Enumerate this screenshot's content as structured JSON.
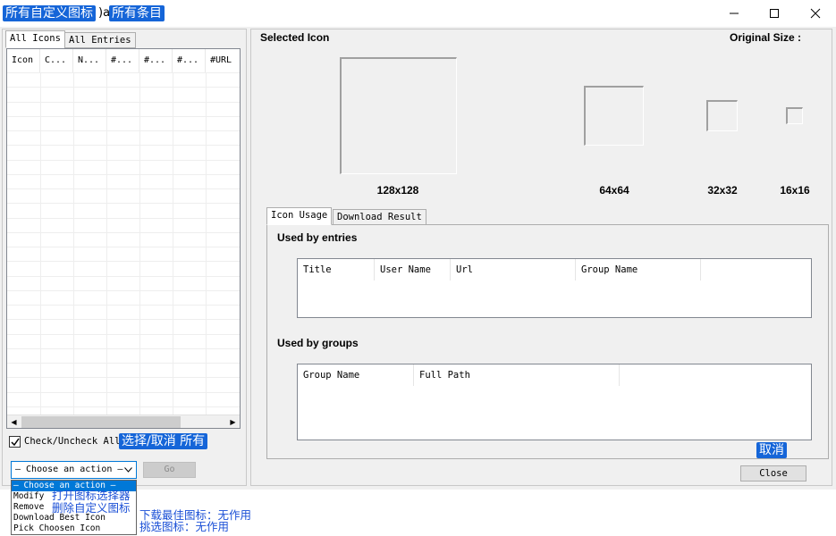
{
  "window": {
    "title_prefix": ")a",
    "annotation_all_custom_icons": "所有自定义图标",
    "annotation_all_entries": "所有条目",
    "controls": [
      "minimize-icon",
      "maximize-icon",
      "close-icon"
    ]
  },
  "left": {
    "tabs": [
      {
        "label": "All Icons",
        "active": true
      },
      {
        "label": "All Entries",
        "active": false
      }
    ],
    "columns": [
      "Icon",
      "C...",
      "N...",
      "#...",
      "#...",
      "#...",
      "#URL"
    ],
    "check_all_label": "Check/Uncheck All",
    "check_all_checked": true,
    "annotation_check_all": "选择/取消 所有",
    "action_select_value": "— Choose an action —",
    "go_label": "Go",
    "dropdown_options": [
      {
        "label": "— Choose an action —",
        "selected": true
      },
      {
        "label": "Modify",
        "selected": false
      },
      {
        "label": "Remove",
        "selected": false
      },
      {
        "label": "Download Best Icon",
        "selected": false
      },
      {
        "label": "Pick Choosen Icon",
        "selected": false
      }
    ],
    "annotations_dropdown": {
      "modify": "打开图标选择器",
      "remove": "删除自定义图标",
      "download": "下载最佳图标：无作用",
      "pick": "挑选图标：无作用"
    }
  },
  "right": {
    "selected_icon_label": "Selected Icon",
    "original_size_label": "Original Size :",
    "previews": [
      {
        "label": "128x128"
      },
      {
        "label": "64x64"
      },
      {
        "label": "32x32"
      },
      {
        "label": "16x16"
      }
    ],
    "tabs": [
      {
        "label": "Icon Usage",
        "active": true
      },
      {
        "label": "Download Result",
        "active": false
      }
    ],
    "used_by_entries_label": "Used by entries",
    "entries_columns": [
      "Title",
      "User Name",
      "Url",
      "Group Name"
    ],
    "used_by_groups_label": "Used by groups",
    "groups_columns": [
      "Group Name",
      "Full Path"
    ],
    "annotation_close": "取消",
    "close_label": "Close"
  },
  "colors": {
    "annotation_bg": "#1565d8",
    "annotation_text_blue": "#1a4fd6",
    "selection": "#0078d7"
  }
}
